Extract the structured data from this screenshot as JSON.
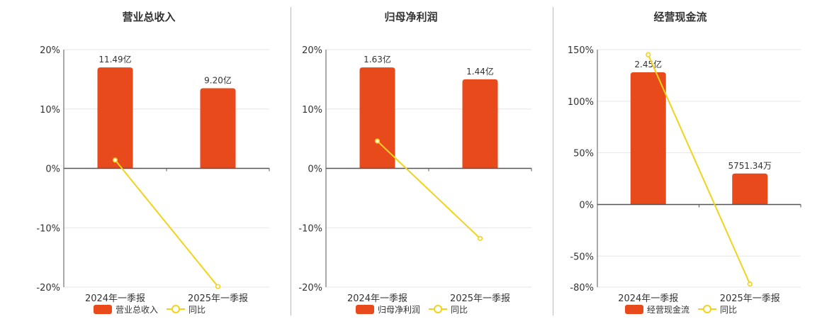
{
  "colors": {
    "bar": "#e84a1c",
    "line": "#f2d21a",
    "axis": "#555555",
    "grid": "#e6e6e6",
    "divider": "#bbbbbb",
    "title": "#333333",
    "text": "#333333"
  },
  "chart_data": [
    {
      "type": "bar",
      "title": "营业总收入",
      "categories": [
        "2024年一季报",
        "2025年一季报"
      ],
      "ylim": [
        -20,
        20
      ],
      "yticks": [
        20,
        10,
        0,
        -10,
        -20
      ],
      "ytick_labels": [
        "20%",
        "10%",
        "0%",
        "-10%",
        "-20%"
      ],
      "bar_plot_values": [
        17,
        13.5
      ],
      "bar_labels": [
        "11.49亿",
        "9.20亿"
      ],
      "yoy": [
        1.4,
        -19.9
      ],
      "legend": {
        "bar_label": "营业总收入",
        "line_label": "同比"
      }
    },
    {
      "type": "bar",
      "title": "归母净利润",
      "categories": [
        "2024年一季报",
        "2025年一季报"
      ],
      "ylim": [
        -20,
        20
      ],
      "yticks": [
        20,
        10,
        0,
        -10,
        -20
      ],
      "ytick_labels": [
        "20%",
        "10%",
        "0%",
        "-10%",
        "-20%"
      ],
      "bar_plot_values": [
        17,
        15
      ],
      "bar_labels": [
        "1.63亿",
        "1.44亿"
      ],
      "yoy": [
        4.6,
        -11.8
      ],
      "legend": {
        "bar_label": "归母净利润",
        "line_label": "同比"
      }
    },
    {
      "type": "bar",
      "title": "经营现金流",
      "categories": [
        "2024年一季报",
        "2025年一季报"
      ],
      "ylim": [
        -80,
        150
      ],
      "yticks": [
        150,
        100,
        50,
        0,
        -50,
        -80
      ],
      "ytick_labels": [
        "150%",
        "100%",
        "50%",
        "0%",
        "-50%",
        "-80%"
      ],
      "bar_plot_values": [
        128,
        30
      ],
      "bar_labels": [
        "2.45亿",
        "5751.34万"
      ],
      "yoy": [
        145,
        -77
      ],
      "legend": {
        "bar_label": "经营现金流",
        "line_label": "同比"
      }
    }
  ]
}
